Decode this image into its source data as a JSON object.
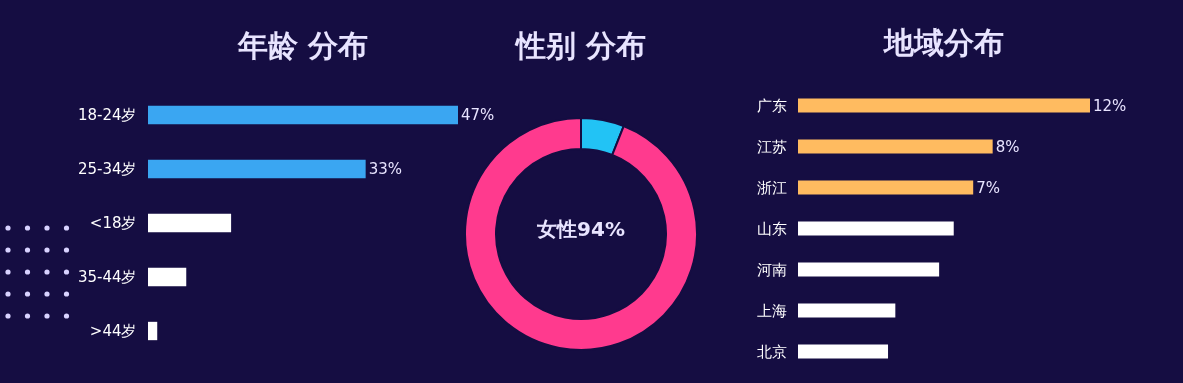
{
  "chart_data": [
    {
      "type": "bar",
      "orientation": "horizontal",
      "title": "年龄 分布",
      "categories": [
        "18-24岁",
        "25-34岁",
        "<18岁",
        "35-44岁",
        ">44岁"
      ],
      "values": [
        47,
        33,
        12.6,
        5.8,
        1.4
      ],
      "value_labels": [
        "47%",
        "33%",
        null,
        null,
        null
      ],
      "colors": [
        "#3aa6f2",
        "#3aa6f2",
        "#ffffff",
        "#ffffff",
        "#ffffff"
      ]
    },
    {
      "type": "donut",
      "title": "性别 分布",
      "categories": [
        null,
        "女性"
      ],
      "values": [
        6,
        94
      ],
      "value_labels": [
        null,
        "94%"
      ],
      "colors": [
        "#22c3f5",
        "#ff3a8e"
      ]
    },
    {
      "type": "bar",
      "orientation": "horizontal",
      "title": "地域分布",
      "categories": [
        "广东",
        "江苏",
        "浙江",
        "山东",
        "河南",
        "上海",
        "北京"
      ],
      "values": [
        12,
        8,
        7.2,
        6.4,
        5.8,
        4.0,
        3.7
      ],
      "value_labels": [
        "12%",
        "8%",
        "7%",
        null,
        null,
        null,
        null
      ],
      "colors": [
        "#ffbb60",
        "#ffbb60",
        "#ffbb60",
        "#ffffff",
        "#ffffff",
        "#ffffff",
        "#ffffff"
      ]
    }
  ]
}
